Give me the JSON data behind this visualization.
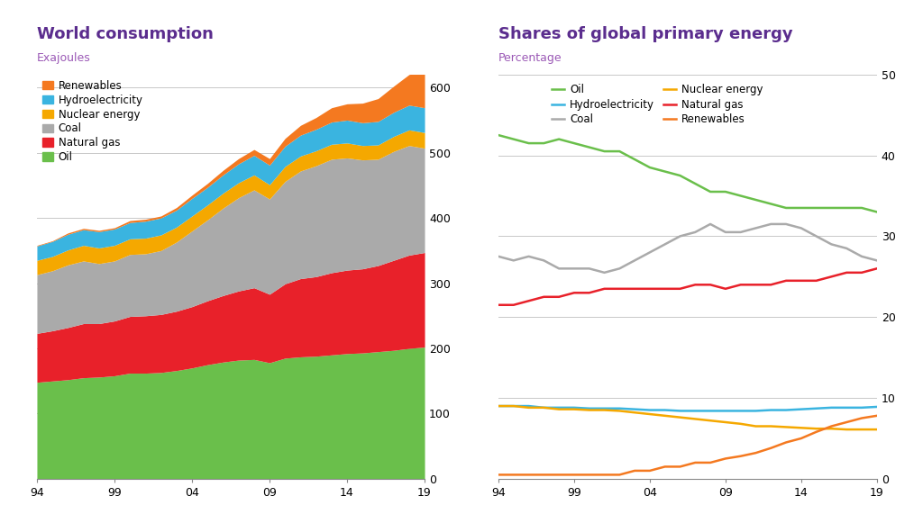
{
  "years": [
    1994,
    1995,
    1996,
    1997,
    1998,
    1999,
    2000,
    2001,
    2002,
    2003,
    2004,
    2005,
    2006,
    2007,
    2008,
    2009,
    2010,
    2011,
    2012,
    2013,
    2014,
    2015,
    2016,
    2017,
    2018,
    2019
  ],
  "stack_oil": [
    148,
    150,
    152,
    155,
    156,
    158,
    162,
    162,
    163,
    166,
    170,
    175,
    179,
    182,
    183,
    178,
    185,
    187,
    188,
    190,
    192,
    193,
    195,
    197,
    200,
    202
  ],
  "stack_natgas": [
    75,
    77,
    80,
    83,
    82,
    84,
    87,
    88,
    89,
    91,
    94,
    98,
    102,
    106,
    110,
    105,
    114,
    120,
    122,
    126,
    128,
    129,
    132,
    138,
    143,
    145
  ],
  "stack_coal": [
    90,
    92,
    96,
    96,
    92,
    92,
    95,
    95,
    98,
    106,
    116,
    124,
    134,
    143,
    150,
    146,
    157,
    165,
    170,
    174,
    172,
    167,
    163,
    167,
    168,
    160
  ],
  "stack_nuclear": [
    22,
    22,
    23,
    24,
    24,
    24,
    24,
    24,
    24,
    23,
    23,
    23,
    23,
    23,
    23,
    22,
    23,
    23,
    23,
    23,
    23,
    22,
    22,
    23,
    24,
    24
  ],
  "stack_hydro": [
    22,
    23,
    24,
    24,
    25,
    25,
    25,
    26,
    26,
    26,
    27,
    27,
    28,
    29,
    30,
    30,
    31,
    32,
    33,
    34,
    35,
    35,
    36,
    37,
    38,
    38
  ],
  "stack_renewables": [
    1,
    1,
    2,
    2,
    2,
    2,
    3,
    3,
    3,
    4,
    5,
    6,
    7,
    8,
    9,
    10,
    12,
    15,
    18,
    22,
    25,
    30,
    35,
    40,
    47,
    55
  ],
  "pct_oil": [
    42.5,
    42.0,
    41.5,
    41.5,
    42.0,
    41.5,
    41.0,
    40.5,
    40.5,
    39.5,
    38.5,
    38.0,
    37.5,
    36.5,
    35.5,
    35.5,
    35.0,
    34.5,
    34.0,
    33.5,
    33.5,
    33.5,
    33.5,
    33.5,
    33.5,
    33.0
  ],
  "pct_coal": [
    27.5,
    27.0,
    27.5,
    27.0,
    26.0,
    26.0,
    26.0,
    25.5,
    26.0,
    27.0,
    28.0,
    29.0,
    30.0,
    30.5,
    31.5,
    30.5,
    30.5,
    31.0,
    31.5,
    31.5,
    31.0,
    30.0,
    29.0,
    28.5,
    27.5,
    27.0
  ],
  "pct_natgas": [
    21.5,
    21.5,
    22.0,
    22.5,
    22.5,
    23.0,
    23.0,
    23.5,
    23.5,
    23.5,
    23.5,
    23.5,
    23.5,
    24.0,
    24.0,
    23.5,
    24.0,
    24.0,
    24.0,
    24.5,
    24.5,
    24.5,
    25.0,
    25.5,
    25.5,
    26.0
  ],
  "pct_hydro": [
    9.0,
    9.0,
    9.0,
    8.8,
    8.8,
    8.8,
    8.7,
    8.7,
    8.7,
    8.6,
    8.5,
    8.5,
    8.4,
    8.4,
    8.4,
    8.4,
    8.4,
    8.4,
    8.5,
    8.5,
    8.6,
    8.7,
    8.8,
    8.8,
    8.8,
    8.9
  ],
  "pct_nuclear": [
    9.0,
    9.0,
    8.8,
    8.8,
    8.6,
    8.6,
    8.5,
    8.5,
    8.4,
    8.2,
    8.0,
    7.8,
    7.6,
    7.4,
    7.2,
    7.0,
    6.8,
    6.5,
    6.5,
    6.4,
    6.3,
    6.2,
    6.2,
    6.1,
    6.1,
    6.1
  ],
  "pct_renew": [
    0.5,
    0.5,
    0.5,
    0.5,
    0.5,
    0.5,
    0.5,
    0.5,
    0.5,
    1.0,
    1.0,
    1.5,
    1.5,
    2.0,
    2.0,
    2.5,
    2.8,
    3.2,
    3.8,
    4.5,
    5.0,
    5.8,
    6.5,
    7.0,
    7.5,
    7.8
  ],
  "colors": {
    "oil": "#6abf4b",
    "natgas": "#e8212a",
    "coal": "#aaaaaa",
    "nuclear": "#f5a800",
    "hydro": "#3ab4e0",
    "renewables": "#f47920"
  },
  "title_left": "World consumption",
  "subtitle_left": "Exajoules",
  "title_right": "Shares of global primary energy",
  "subtitle_right": "Percentage",
  "title_color": "#5b2d8e",
  "subtitle_color": "#9b59b6",
  "ylim_left": [
    0,
    620
  ],
  "yticks_left": [
    0,
    100,
    200,
    300,
    400,
    500,
    600
  ],
  "ylim_right": [
    0,
    50
  ],
  "yticks_right": [
    0,
    10,
    20,
    30,
    40,
    50
  ],
  "xtick_positions": [
    1994,
    1999,
    2004,
    2009,
    2014,
    2019
  ],
  "xlabel_ticks": [
    "94",
    "99",
    "04",
    "09",
    "14",
    "19"
  ]
}
